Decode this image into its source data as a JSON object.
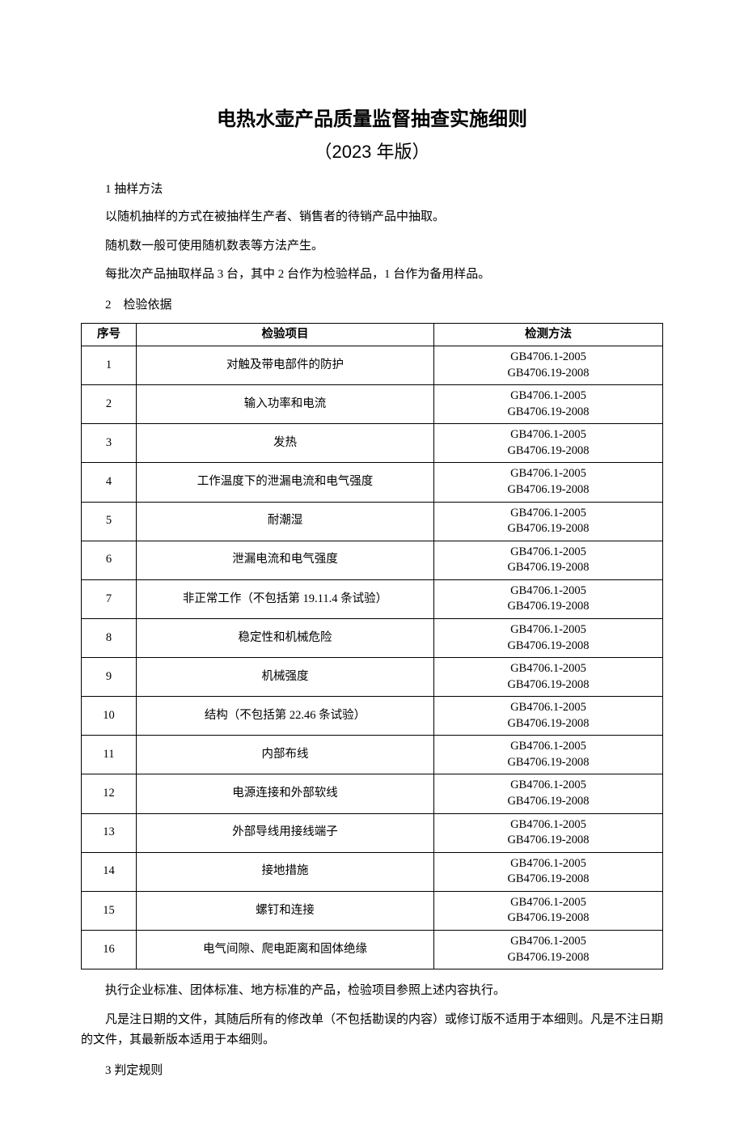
{
  "title": "电热水壶产品质量监督抽查实施细则",
  "subtitle": "（2023 年版）",
  "section1_heading": "1 抽样方法",
  "section1_p1": "以随机抽样的方式在被抽样生产者、销售者的待销产品中抽取。",
  "section1_p2": "随机数一般可使用随机数表等方法产生。",
  "section1_p3": "每批次产品抽取样品 3 台，其中 2 台作为检验样品，1 台作为备用样品。",
  "section2_heading": "2　检验依据",
  "table": {
    "columns": [
      "序号",
      "检验项目",
      "检测方法"
    ],
    "method_lines": [
      "GB4706.1-2005",
      "GB4706.19-2008"
    ],
    "rows": [
      {
        "idx": "1",
        "item": "对触及带电部件的防护"
      },
      {
        "idx": "2",
        "item": "输入功率和电流"
      },
      {
        "idx": "3",
        "item": "发热"
      },
      {
        "idx": "4",
        "item": "工作温度下的泄漏电流和电气强度"
      },
      {
        "idx": "5",
        "item": "耐潮湿"
      },
      {
        "idx": "6",
        "item": "泄漏电流和电气强度"
      },
      {
        "idx": "7",
        "item": "非正常工作（不包括第 19.11.4 条试验）"
      },
      {
        "idx": "8",
        "item": "稳定性和机械危险"
      },
      {
        "idx": "9",
        "item": "机械强度"
      },
      {
        "idx": "10",
        "item": "结构（不包括第 22.46 条试验）"
      },
      {
        "idx": "11",
        "item": "内部布线"
      },
      {
        "idx": "12",
        "item": "电源连接和外部软线"
      },
      {
        "idx": "13",
        "item": "外部导线用接线端子"
      },
      {
        "idx": "14",
        "item": "接地措施"
      },
      {
        "idx": "15",
        "item": "螺钉和连接"
      },
      {
        "idx": "16",
        "item": "电气间隙、爬电距离和固体绝缘"
      }
    ]
  },
  "after_table_p1": "执行企业标准、团体标准、地方标准的产品，检验项目参照上述内容执行。",
  "after_table_p2": "凡是注日期的文件，其随后所有的修改单（不包括勘误的内容）或修订版不适用于本细则。凡是不注日期的文件，其最新版本适用于本细则。",
  "section3_heading": "3 判定规则"
}
